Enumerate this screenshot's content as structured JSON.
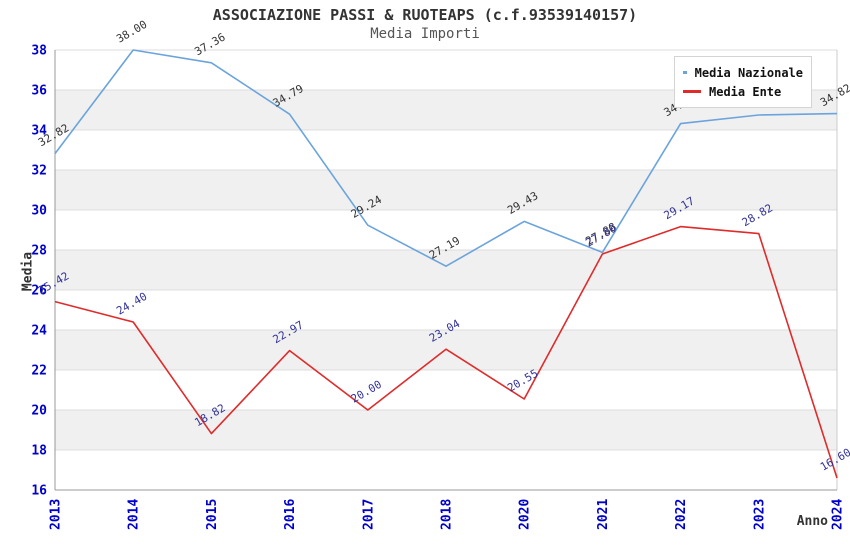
{
  "chart_data": {
    "type": "line",
    "title": "ASSOCIAZIONE PASSI & RUOTEAPS (c.f.93539140157)",
    "subtitle": "Media Importi",
    "xlabel": "Anno",
    "ylabel": "Media",
    "categories": [
      "2013",
      "2014",
      "2015",
      "2016",
      "2017",
      "2018",
      "2020",
      "2021",
      "2022",
      "2023",
      "2024"
    ],
    "series": [
      {
        "name": "Media Nazionale",
        "color": "#6BA4DC",
        "label_color": "#333333",
        "values": [
          32.82,
          38.0,
          37.36,
          34.79,
          29.24,
          27.19,
          29.43,
          27.88,
          34.32,
          34.75,
          34.82
        ]
      },
      {
        "name": "Media Ente",
        "color": "#E02B2B",
        "label_color": "#333399",
        "values": [
          25.42,
          24.4,
          18.82,
          22.97,
          20.0,
          23.04,
          20.55,
          27.8,
          29.17,
          28.82,
          16.6
        ]
      }
    ],
    "ylim": [
      16,
      38
    ],
    "ytick_step": 2,
    "yticks": [
      "38",
      "36",
      "34",
      "32",
      "30",
      "28",
      "26",
      "24",
      "22",
      "20",
      "18",
      "16"
    ],
    "legend_position": "top-right",
    "grid": "horizontal",
    "band_color": "#F0F0F0",
    "gridline_color": "#DCDCDC",
    "spine_color": "#999999",
    "tick_label_color": "#0000CC"
  }
}
